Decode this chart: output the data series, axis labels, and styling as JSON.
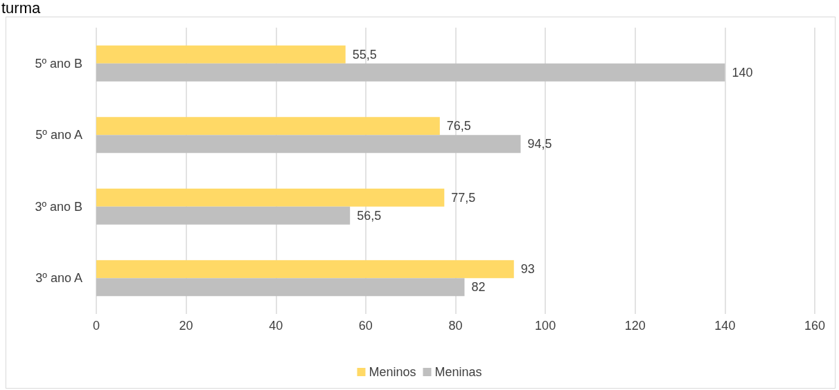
{
  "chart_data": {
    "type": "bar",
    "orientation": "horizontal",
    "title": "turma",
    "categories": [
      "5º ano B",
      "5º ano A",
      "3º ano B",
      "3º ano A"
    ],
    "series": [
      {
        "name": "Meninos",
        "color": "#ffd966",
        "values": [
          55.5,
          76.5,
          77.5,
          93
        ],
        "value_labels": [
          "55,5",
          "76,5",
          "77,5",
          "93"
        ]
      },
      {
        "name": "Meninas",
        "color": "#bfbfbf",
        "values": [
          140,
          94.5,
          56.5,
          82
        ],
        "value_labels": [
          "140",
          "94,5",
          "56,5",
          "82"
        ]
      }
    ],
    "xlim": [
      0,
      160
    ],
    "xticks": [
      0,
      20,
      40,
      60,
      80,
      100,
      120,
      140,
      160
    ],
    "grid": "x",
    "legend": "bottom"
  }
}
